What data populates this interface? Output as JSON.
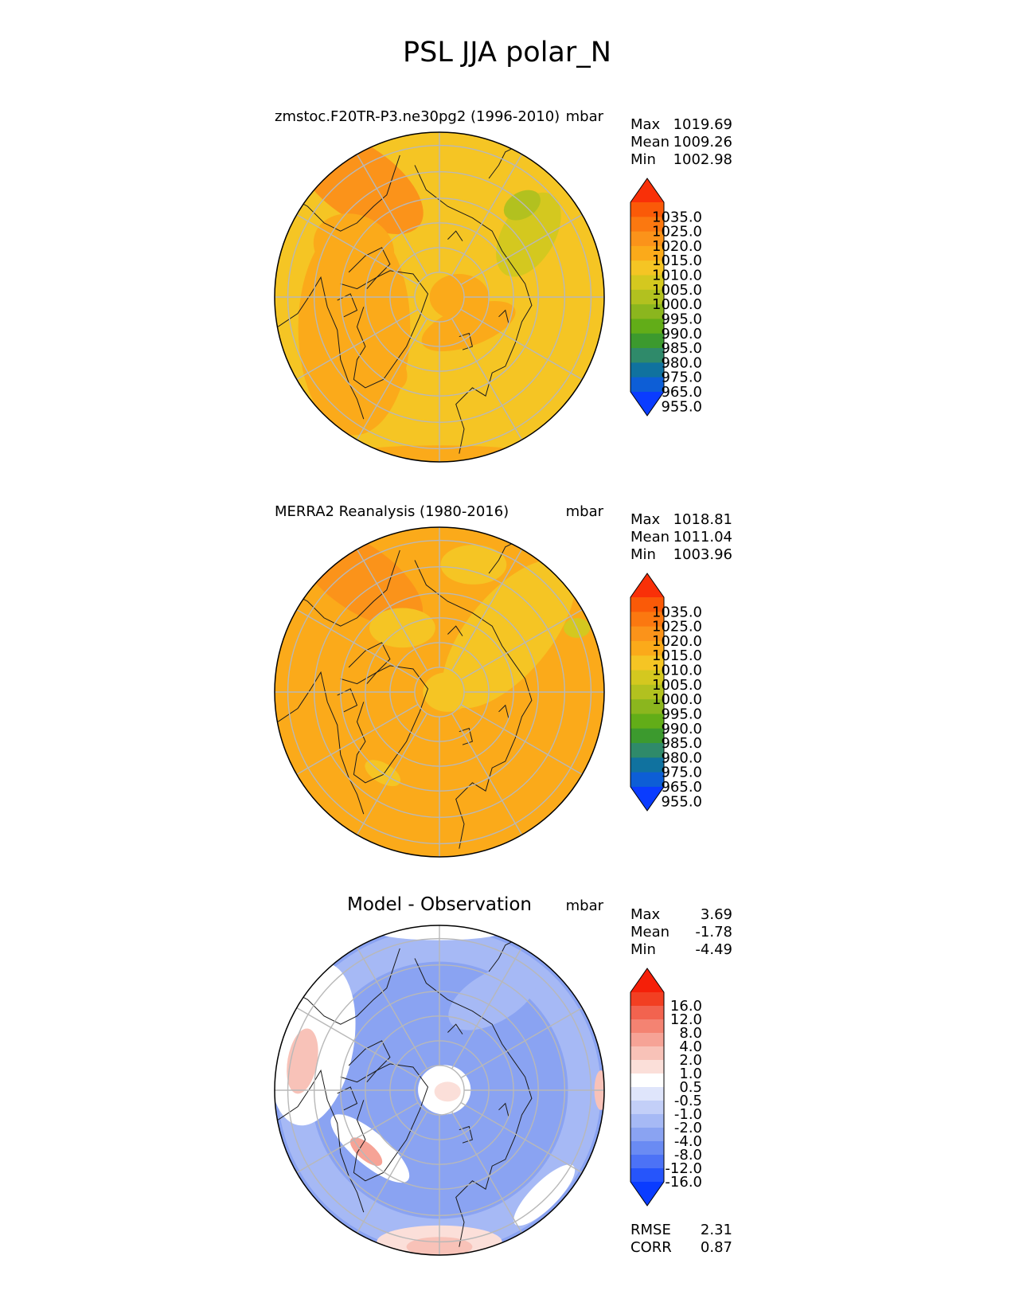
{
  "figure": {
    "title": "PSL JJA polar_N"
  },
  "colors": {
    "grid": "#b8b8b8",
    "coast": "#1a1a1a",
    "abs_levels": [
      "#0a3cff",
      "#0d5ed6",
      "#10729f",
      "#2f8a6a",
      "#3c9a2e",
      "#62ad18",
      "#8bb61e",
      "#b2c11f",
      "#d4c81f",
      "#f5c524",
      "#fbaa1a",
      "#fb931a",
      "#fb7810",
      "#fa5a08",
      "#f93008"
    ],
    "diff_levels": [
      "#0a3cff",
      "#2655fb",
      "#4c72f6",
      "#6a8bf3",
      "#8aa3f2",
      "#a6b9f5",
      "#c3cff8",
      "#dfe5fb",
      "#ffffff",
      "#fbdfd9",
      "#f8c2b8",
      "#f6a396",
      "#f48372",
      "#f2634f",
      "#f23f22",
      "#f51f08"
    ]
  },
  "chart_data": [
    {
      "type": "contour-map",
      "projection": "north-polar-stereographic",
      "title_left": "zmstoc.F20TR-P3.ne30pg2 (1996-2010)",
      "title_right": "mbar",
      "stats": {
        "max_label": "Max",
        "max": "1019.69",
        "mean_label": "Mean",
        "mean": "1009.26",
        "min_label": "Min",
        "min": "1002.98"
      },
      "colorbar_ticks": [
        "1035.0",
        "1025.0",
        "1020.0",
        "1015.0",
        "1010.0",
        "1005.0",
        "1000.0",
        "995.0",
        "990.0",
        "985.0",
        "980.0",
        "975.0",
        "965.0",
        "955.0"
      ],
      "base_color": "#f5c524",
      "patches": [
        {
          "theta": 125,
          "r": 0.85,
          "rx": 0.45,
          "ry": 0.22,
          "rot": 35,
          "color": "#fb931a"
        },
        {
          "theta": 200,
          "r": 0.55,
          "rx": 0.34,
          "ry": 0.65,
          "rot": 0,
          "color": "#fbaa1a"
        },
        {
          "theta": 150,
          "r": 0.6,
          "rx": 0.25,
          "ry": 0.2,
          "rot": 20,
          "color": "#fbaa1a"
        },
        {
          "theta": 0,
          "r": 0.12,
          "rx": 0.18,
          "ry": 0.14,
          "rot": 0,
          "color": "#fbaa1a"
        },
        {
          "theta": 315,
          "r": 0.25,
          "rx": 0.3,
          "ry": 0.12,
          "rot": -20,
          "color": "#fbaa1a"
        },
        {
          "theta": 230,
          "r": 0.55,
          "rx": 0.18,
          "ry": 0.12,
          "rot": 40,
          "color": "#fbaa1a"
        },
        {
          "theta": 270,
          "r": 0.97,
          "rx": 0.65,
          "ry": 0.07,
          "rot": 0,
          "color": "#fbaa1a"
        },
        {
          "theta": 35,
          "r": 0.66,
          "rx": 0.28,
          "ry": 0.16,
          "rot": -60,
          "color": "#d4c81f"
        },
        {
          "theta": 48,
          "r": 0.75,
          "rx": 0.12,
          "ry": 0.08,
          "rot": -30,
          "color": "#b2c11f"
        }
      ]
    },
    {
      "type": "contour-map",
      "projection": "north-polar-stereographic",
      "title_left": "MERRA2 Reanalysis (1980-2016)",
      "title_right": "mbar",
      "stats": {
        "max_label": "Max",
        "max": "1018.81",
        "mean_label": "Mean",
        "mean": "1011.04",
        "min_label": "Min",
        "min": "1003.96"
      },
      "colorbar_ticks": [
        "1035.0",
        "1025.0",
        "1020.0",
        "1015.0",
        "1010.0",
        "1005.0",
        "1000.0",
        "995.0",
        "990.0",
        "985.0",
        "980.0",
        "975.0",
        "965.0",
        "955.0"
      ],
      "base_color": "#fbaa1a",
      "patches": [
        {
          "theta": 125,
          "r": 0.85,
          "rx": 0.45,
          "ry": 0.2,
          "rot": 35,
          "color": "#fb931a"
        },
        {
          "theta": 40,
          "r": 0.55,
          "rx": 0.55,
          "ry": 0.25,
          "rot": -50,
          "color": "#f5c524"
        },
        {
          "theta": 0,
          "r": 0.05,
          "rx": 0.15,
          "ry": 0.12,
          "rot": 0,
          "color": "#f5c524"
        },
        {
          "theta": 75,
          "r": 0.8,
          "rx": 0.2,
          "ry": 0.12,
          "rot": 0,
          "color": "#f5c524"
        },
        {
          "theta": 120,
          "r": 0.45,
          "rx": 0.2,
          "ry": 0.12,
          "rot": 0,
          "color": "#f5c524"
        },
        {
          "theta": 235,
          "r": 0.6,
          "rx": 0.12,
          "ry": 0.06,
          "rot": 30,
          "color": "#f5c524"
        },
        {
          "theta": 25,
          "r": 0.92,
          "rx": 0.08,
          "ry": 0.06,
          "rot": 0,
          "color": "#d4c81f"
        }
      ]
    },
    {
      "type": "contour-map",
      "projection": "north-polar-stereographic",
      "title_center": "Model - Observation",
      "title_right": "mbar",
      "stats": {
        "max_label": "Max",
        "max": "3.69",
        "mean_label": "Mean",
        "mean": "-1.78",
        "min_label": "Min",
        "min": "-4.49"
      },
      "colorbar_ticks": [
        "16.0",
        "12.0",
        "8.0",
        "4.0",
        "2.0",
        "1.0",
        "0.5",
        "-0.5",
        "-1.0",
        "-2.0",
        "-4.0",
        "-8.0",
        "-12.0",
        "-16.0"
      ],
      "metrics": {
        "rmse_label": "RMSE",
        "rmse": "2.31",
        "corr_label": "CORR",
        "corr": "0.87"
      },
      "base_color": "#8aa3f2",
      "patches": [
        {
          "theta": 0,
          "r": 0.0,
          "rx": 0.98,
          "ry": 0.98,
          "rot": 0,
          "color": "#a6b9f5"
        },
        {
          "theta": 0,
          "r": 0.0,
          "rx": 0.78,
          "ry": 0.78,
          "rot": 0,
          "color": "#8aa3f2"
        },
        {
          "theta": 160,
          "r": 0.82,
          "rx": 0.25,
          "ry": 0.5,
          "rot": 10,
          "color": "#ffffff"
        },
        {
          "theta": 168,
          "r": 0.85,
          "rx": 0.09,
          "ry": 0.2,
          "rot": 10,
          "color": "#f8c2b8"
        },
        {
          "theta": 270,
          "r": 0.92,
          "rx": 0.38,
          "ry": 0.1,
          "rot": 0,
          "color": "#fbdfd9"
        },
        {
          "theta": 270,
          "r": 0.95,
          "rx": 0.2,
          "ry": 0.06,
          "rot": 0,
          "color": "#f8c2b8"
        },
        {
          "theta": 5,
          "r": 0.03,
          "rx": 0.16,
          "ry": 0.15,
          "rot": 0,
          "color": "#ffffff"
        },
        {
          "theta": 350,
          "r": 0.05,
          "rx": 0.08,
          "ry": 0.06,
          "rot": 0,
          "color": "#fbdfd9"
        },
        {
          "theta": 220,
          "r": 0.55,
          "rx": 0.3,
          "ry": 0.1,
          "rot": 40,
          "color": "#ffffff"
        },
        {
          "theta": 220,
          "r": 0.58,
          "rx": 0.12,
          "ry": 0.05,
          "rot": 40,
          "color": "#f6a396"
        },
        {
          "theta": 60,
          "r": 0.65,
          "rx": 0.3,
          "ry": 0.15,
          "rot": -30,
          "color": "#a6b9f5"
        },
        {
          "theta": 0,
          "r": 0.98,
          "rx": 0.04,
          "ry": 0.12,
          "rot": 0,
          "color": "#f8c2b8"
        },
        {
          "theta": 90,
          "r": 0.97,
          "rx": 0.4,
          "ry": 0.06,
          "rot": 0,
          "color": "#ffffff"
        },
        {
          "theta": 315,
          "r": 0.9,
          "rx": 0.25,
          "ry": 0.08,
          "rot": -45,
          "color": "#ffffff"
        }
      ]
    }
  ]
}
